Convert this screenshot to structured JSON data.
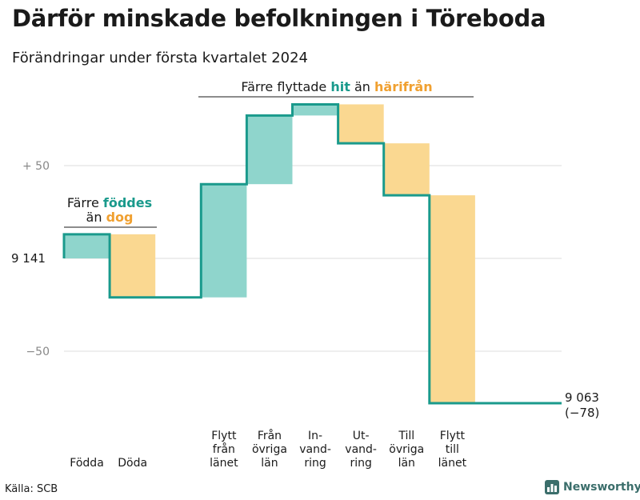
{
  "title": "Därför minskade befolkningen i Töreboda",
  "subtitle": "Förändringar under första kvartalet 2024",
  "source": "Källa: SCB",
  "brand": {
    "name": "Newsworthy",
    "icon": "bar-chart-logo-icon"
  },
  "colors": {
    "line": "#1a9a8c",
    "increase": "#8fd5cc",
    "decrease": "#fad891",
    "grid": "#dddddd",
    "text": "#1a1a1a",
    "muted": "#888888",
    "teal_text": "#1a9a8c",
    "orange_text": "#f0a030"
  },
  "annotations": {
    "births": {
      "line1": "Färre",
      "emph1": "föddes",
      "line2": "än",
      "emph2": "dog"
    },
    "migration": {
      "text1": "Färre flyttade",
      "emph1": "hit",
      "text2": "än",
      "emph2": "härifrån"
    }
  },
  "chart_data": {
    "type": "waterfall",
    "start_value": 9141,
    "start_label": "9 141",
    "end_value": 9063,
    "end_label": "9 063",
    "end_change_label": "(−78)",
    "y_ticks": [
      {
        "value": 50,
        "label": "+  50"
      },
      {
        "value": -50,
        "label": "−50"
      }
    ],
    "ylim": [
      -84,
      83
    ],
    "categories": [
      {
        "label": [
          "Födda"
        ],
        "value": 13,
        "kind": "increase"
      },
      {
        "label": [
          "Döda"
        ],
        "value": -34,
        "kind": "decrease"
      },
      {
        "label": [],
        "value": 0,
        "kind": "none"
      },
      {
        "label": [
          "Flytt",
          "från",
          "länet"
        ],
        "value": 61,
        "kind": "increase"
      },
      {
        "label": [
          "Från",
          "övriga",
          "län"
        ],
        "value": 37,
        "kind": "increase"
      },
      {
        "label": [
          "In-",
          "vand-",
          "ring"
        ],
        "value": 6,
        "kind": "increase"
      },
      {
        "label": [
          "Ut-",
          "vand-",
          "ring"
        ],
        "value": -21,
        "kind": "decrease"
      },
      {
        "label": [
          "Till",
          "övriga",
          "län"
        ],
        "value": -28,
        "kind": "decrease"
      },
      {
        "label": [
          "Flytt",
          "till",
          "länet"
        ],
        "value": -112,
        "kind": "decrease"
      }
    ]
  }
}
